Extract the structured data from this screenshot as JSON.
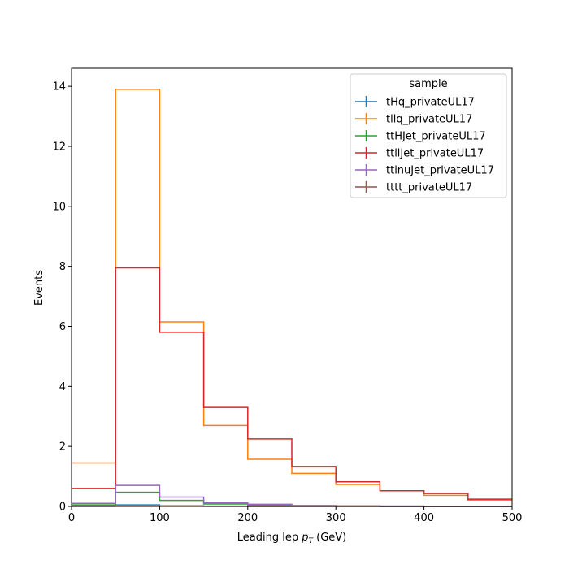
{
  "chart_data": {
    "type": "step-histogram",
    "xlabel_main": "Leading lep ",
    "xlabel_sym": "p",
    "xlabel_sub": "T",
    "xlabel_unit": " (GeV)",
    "ylabel": "Events",
    "xlim": [
      0,
      500
    ],
    "ylim": [
      0,
      14.6
    ],
    "xticks": [
      0,
      100,
      200,
      300,
      400,
      500
    ],
    "yticks": [
      0,
      2,
      4,
      6,
      8,
      10,
      12,
      14
    ],
    "grid": false,
    "legend": {
      "title": "sample",
      "placement": "top-right"
    },
    "bin_edges": [
      0,
      50,
      100,
      150,
      200,
      250,
      300,
      350,
      400,
      450,
      500
    ],
    "series": [
      {
        "name": "tHq_privateUL17",
        "color": "#1f77b4",
        "values": [
          0.03,
          0.05,
          0.02,
          0.01,
          0.005,
          0.003,
          0.002,
          0.001,
          0.001,
          0.001
        ]
      },
      {
        "name": "tllq_privateUL17",
        "color": "#ff7f0e",
        "values": [
          1.45,
          13.9,
          6.15,
          2.7,
          1.57,
          1.1,
          0.73,
          0.52,
          0.37,
          0.25
        ]
      },
      {
        "name": "ttHJet_privateUL17",
        "color": "#2ca02c",
        "values": [
          0.05,
          0.47,
          0.2,
          0.08,
          0.04,
          0.02,
          0.01,
          0.01,
          0.005,
          0.005
        ]
      },
      {
        "name": "ttllJet_privateUL17",
        "color": "#d62728",
        "values": [
          0.6,
          7.95,
          5.8,
          3.3,
          2.25,
          1.33,
          0.82,
          0.52,
          0.43,
          0.22
        ]
      },
      {
        "name": "ttlnuJet_privateUL17",
        "color": "#9467bd",
        "values": [
          0.1,
          0.7,
          0.31,
          0.12,
          0.07,
          0.03,
          0.02,
          0.01,
          0.005,
          0.005
        ]
      },
      {
        "name": "tttt_privateUL17",
        "color": "#8c564b",
        "values": [
          0.005,
          0.01,
          0.01,
          0.005,
          0.005,
          0.003,
          0.002,
          0.001,
          0.001,
          0.001
        ]
      }
    ]
  }
}
